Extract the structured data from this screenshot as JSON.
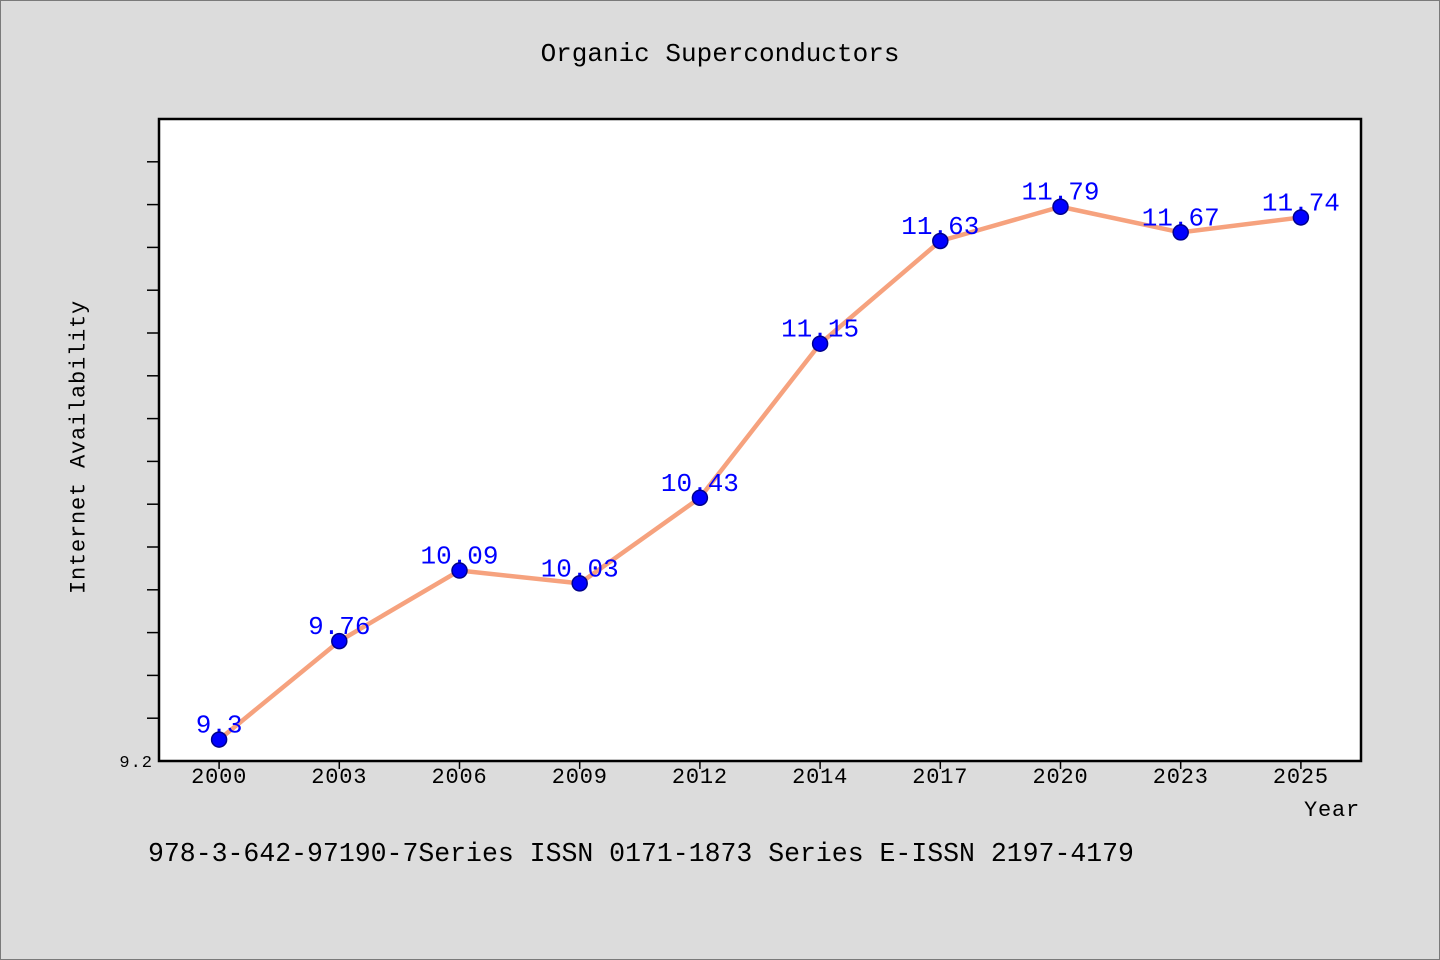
{
  "chart_data": {
    "type": "line",
    "title": "Organic Superconductors",
    "xlabel": "Year",
    "ylabel": "Internet Availability",
    "categories": [
      "2000",
      "2003",
      "2006",
      "2009",
      "2012",
      "2014",
      "2017",
      "2020",
      "2023",
      "2025"
    ],
    "series": [
      {
        "values": [
          9.3,
          9.76,
          10.09,
          10.03,
          10.43,
          11.15,
          11.63,
          11.79,
          11.67,
          11.74
        ]
      }
    ],
    "ylim": [
      9.2,
      12.2
    ],
    "y_tick_labels": [
      {
        "value": 9.2,
        "label": "9.2"
      }
    ],
    "y_minor_tick_step": 0.2,
    "data_labels": true,
    "grid": false,
    "colors": {
      "background": "#dcdcdc",
      "plot_background": "#ffffff",
      "line": "#f6a27e",
      "marker": "#0000ff",
      "marker_edge": "#00008b",
      "data_label": "#0000ff"
    }
  },
  "footer": {
    "text": "978-3-642-97190-7Series ISSN 0171-1873 Series E-ISSN 2197-4179"
  }
}
